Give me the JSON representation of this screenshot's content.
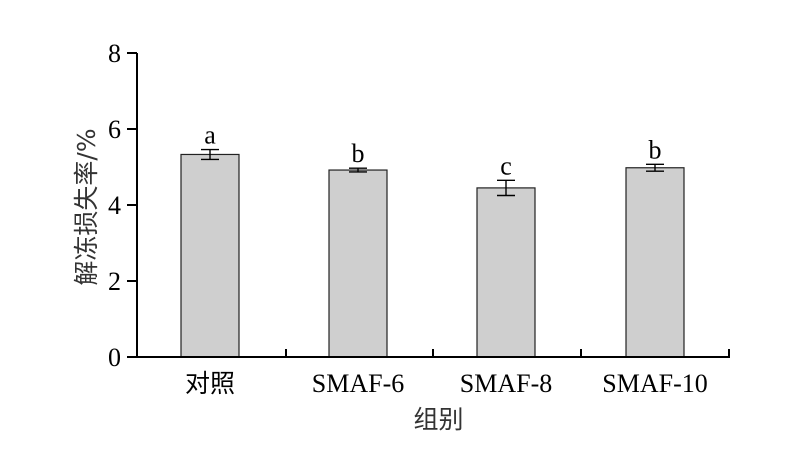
{
  "chart_data": {
    "type": "bar",
    "categories": [
      "对照",
      "SMAF-6",
      "SMAF-8",
      "SMAF-10"
    ],
    "values": [
      5.33,
      4.92,
      4.45,
      4.98
    ],
    "errors": [
      0.13,
      0.05,
      0.2,
      0.09
    ],
    "significance_labels": [
      "a",
      "b",
      "c",
      "b"
    ],
    "xlabel": "组别",
    "ylabel": "解冻损失率/%",
    "ylim": [
      0,
      8
    ],
    "yticks": [
      0,
      2,
      4,
      6,
      8
    ],
    "grid": false,
    "bar_color": "#cfcfcf"
  }
}
